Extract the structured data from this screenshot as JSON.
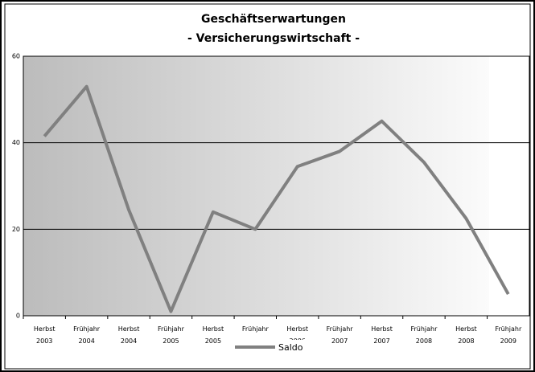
{
  "chart_data": {
    "type": "line",
    "title": [
      "Geschäftserwartungen",
      "- Versicherungswirtschaft -"
    ],
    "categories": [
      "Herbst 2003",
      "Frühjahr 2004",
      "Herbst 2004",
      "Frühjahr 2005",
      "Herbst 2005",
      "Frühjahr",
      "Herbst 2006",
      "Frühjahr 2007",
      "Herbst 2007",
      "Frühjahr 2008",
      "Herbst 2008",
      "Frühjahr 2009"
    ],
    "series": [
      {
        "name": "Saldo",
        "color": "#808080",
        "values": [
          41.5,
          53,
          24.5,
          1,
          24,
          20,
          34.5,
          38,
          45,
          35.5,
          22.5,
          5
        ]
      }
    ],
    "ylim": [
      0,
      60
    ],
    "yticks": [
      0,
      20,
      40,
      60
    ],
    "grid": true,
    "legend": "bottom"
  }
}
